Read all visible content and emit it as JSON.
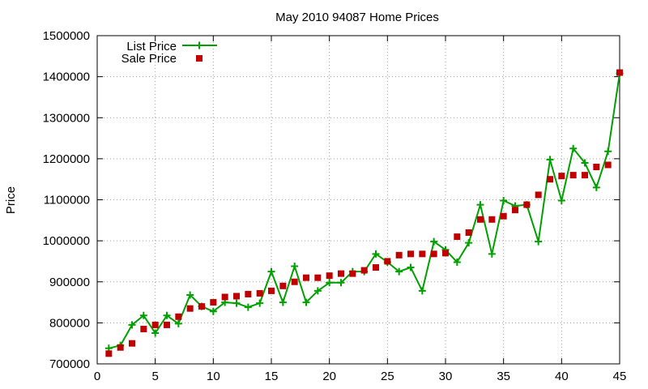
{
  "chart_data": {
    "type": "line",
    "title": "May 2010 94087 Home Prices",
    "xlabel": "",
    "ylabel": "Price",
    "xlim": [
      0,
      45
    ],
    "ylim": [
      700000,
      1500000
    ],
    "x_ticks": [
      0,
      5,
      10,
      15,
      20,
      25,
      30,
      35,
      40,
      45
    ],
    "y_ticks": [
      700000,
      800000,
      900000,
      1000000,
      1100000,
      1200000,
      1300000,
      1400000,
      1500000
    ],
    "x_tick_labels": [
      "0",
      "5",
      "10",
      "15",
      "20",
      "25",
      "30",
      "35",
      "40",
      "45"
    ],
    "y_tick_labels": [
      "700000",
      "800000",
      "900000",
      "1000000",
      "1100000",
      "1200000",
      "1300000",
      "1400000",
      "1500000"
    ],
    "grid": true,
    "legend_position": "top-left",
    "x": [
      1,
      2,
      3,
      4,
      5,
      6,
      7,
      8,
      9,
      10,
      11,
      12,
      13,
      14,
      15,
      16,
      17,
      18,
      19,
      20,
      21,
      22,
      23,
      24,
      25,
      26,
      27,
      28,
      29,
      30,
      31,
      32,
      33,
      34,
      35,
      36,
      37,
      38,
      39,
      40,
      41,
      42,
      43,
      44,
      45
    ],
    "series": [
      {
        "name": "List Price",
        "style": "line+marker",
        "marker": "plus",
        "color": "#00a000",
        "values": [
          738000,
          745000,
          795000,
          818000,
          775000,
          818000,
          798000,
          868000,
          840000,
          828000,
          850000,
          848000,
          838000,
          848000,
          925000,
          850000,
          938000,
          850000,
          878000,
          898000,
          898000,
          925000,
          925000,
          968000,
          948000,
          925000,
          935000,
          878000,
          998000,
          978000,
          948000,
          995000,
          1088000,
          968000,
          1098000,
          1085000,
          1088000,
          998000,
          1198000,
          1098000,
          1225000,
          1190000,
          1130000,
          1218000,
          1408000
        ]
      },
      {
        "name": "Sale Price",
        "style": "marker",
        "marker": "square",
        "color": "#c00000",
        "values": [
          725000,
          740000,
          750000,
          785000,
          795000,
          795000,
          815000,
          835000,
          840000,
          850000,
          863000,
          865000,
          870000,
          872000,
          878000,
          890000,
          900000,
          910000,
          910000,
          915000,
          920000,
          920000,
          928000,
          935000,
          950000,
          965000,
          968000,
          968000,
          968000,
          970000,
          1010000,
          1020000,
          1052000,
          1052000,
          1060000,
          1075000,
          1088000,
          1112000,
          1150000,
          1158000,
          1160000,
          1160000,
          1180000,
          1185000,
          1410000
        ]
      }
    ]
  }
}
